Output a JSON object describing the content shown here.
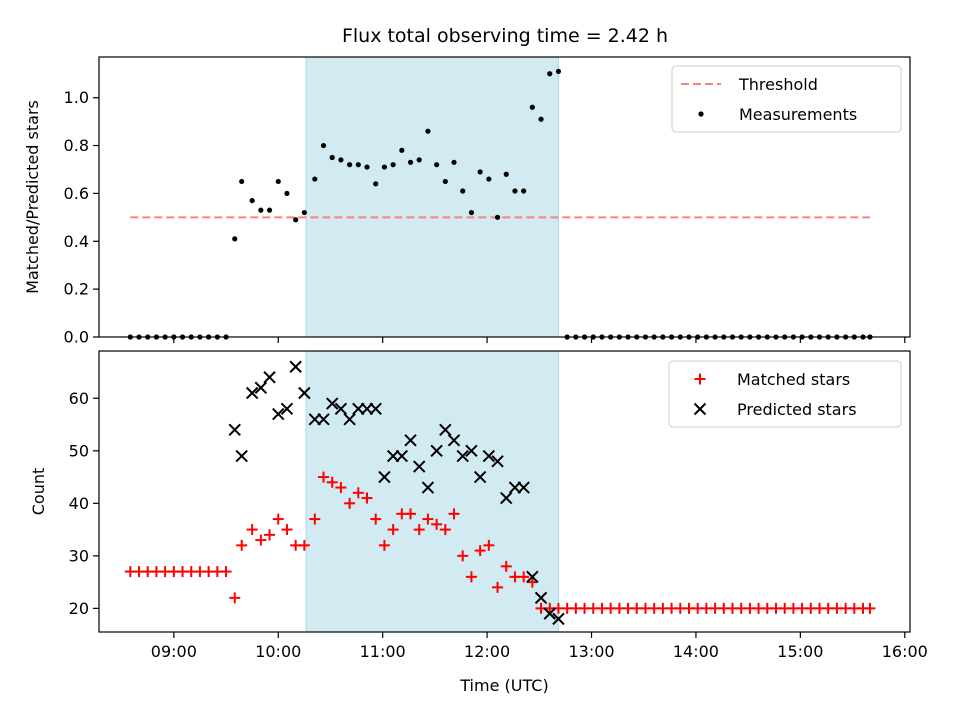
{
  "title": "Flux total observing time = 2.42 h",
  "chart_data": [
    {
      "type": "scatter",
      "ylabel": "Matched/Predicted stars",
      "xlabel": "",
      "ylim": [
        0,
        1.17
      ],
      "y_ticks": [
        "0.0",
        "0.2",
        "0.4",
        "0.6",
        "0.8",
        "1.0"
      ],
      "highlight_span": [
        "10:16",
        "12:41"
      ],
      "threshold": {
        "name": "Threshold",
        "value": 0.5,
        "x_range": [
          "08:35",
          "15:40"
        ]
      },
      "legend": {
        "position": "top-right",
        "entries": [
          "Threshold",
          "Measurements"
        ]
      },
      "series": [
        {
          "name": "Measurements",
          "points": [
            [
              "08:35",
              0
            ],
            [
              "08:40",
              0
            ],
            [
              "08:45",
              0
            ],
            [
              "08:50",
              0
            ],
            [
              "08:55",
              0
            ],
            [
              "09:00",
              0
            ],
            [
              "09:05",
              0
            ],
            [
              "09:10",
              0
            ],
            [
              "09:15",
              0
            ],
            [
              "09:20",
              0
            ],
            [
              "09:25",
              0
            ],
            [
              "09:30",
              0
            ],
            [
              "09:35",
              0.41
            ],
            [
              "09:39",
              0.65
            ],
            [
              "09:45",
              0.57
            ],
            [
              "09:50",
              0.53
            ],
            [
              "09:55",
              0.53
            ],
            [
              "10:00",
              0.65
            ],
            [
              "10:05",
              0.6
            ],
            [
              "10:10",
              0.49
            ],
            [
              "10:15",
              0.52
            ],
            [
              "10:21",
              0.66
            ],
            [
              "10:26",
              0.8
            ],
            [
              "10:31",
              0.75
            ],
            [
              "10:36",
              0.74
            ],
            [
              "10:41",
              0.72
            ],
            [
              "10:46",
              0.72
            ],
            [
              "10:51",
              0.71
            ],
            [
              "10:56",
              0.64
            ],
            [
              "11:01",
              0.71
            ],
            [
              "11:06",
              0.72
            ],
            [
              "11:11",
              0.78
            ],
            [
              "11:16",
              0.73
            ],
            [
              "11:21",
              0.74
            ],
            [
              "11:26",
              0.86
            ],
            [
              "11:31",
              0.72
            ],
            [
              "11:36",
              0.65
            ],
            [
              "11:41",
              0.73
            ],
            [
              "11:46",
              0.61
            ],
            [
              "11:51",
              0.52
            ],
            [
              "11:56",
              0.69
            ],
            [
              "12:01",
              0.66
            ],
            [
              "12:06",
              0.5
            ],
            [
              "12:11",
              0.68
            ],
            [
              "12:16",
              0.61
            ],
            [
              "12:21",
              0.61
            ],
            [
              "12:26",
              0.96
            ],
            [
              "12:31",
              0.91
            ],
            [
              "12:36",
              1.1
            ],
            [
              "12:41",
              1.11
            ],
            [
              "12:46",
              0
            ],
            [
              "12:51",
              0
            ],
            [
              "12:56",
              0
            ],
            [
              "13:01",
              0
            ],
            [
              "13:06",
              0
            ],
            [
              "13:11",
              0
            ],
            [
              "13:16",
              0
            ],
            [
              "13:21",
              0
            ],
            [
              "13:26",
              0
            ],
            [
              "13:31",
              0
            ],
            [
              "13:36",
              0
            ],
            [
              "13:41",
              0
            ],
            [
              "13:46",
              0
            ],
            [
              "13:51",
              0
            ],
            [
              "13:56",
              0
            ],
            [
              "14:01",
              0
            ],
            [
              "14:06",
              0
            ],
            [
              "14:11",
              0
            ],
            [
              "14:16",
              0
            ],
            [
              "14:21",
              0
            ],
            [
              "14:26",
              0
            ],
            [
              "14:31",
              0
            ],
            [
              "14:36",
              0
            ],
            [
              "14:41",
              0
            ],
            [
              "14:46",
              0
            ],
            [
              "14:51",
              0
            ],
            [
              "14:56",
              0
            ],
            [
              "15:01",
              0
            ],
            [
              "15:06",
              0
            ],
            [
              "15:11",
              0
            ],
            [
              "15:16",
              0
            ],
            [
              "15:21",
              0
            ],
            [
              "15:26",
              0
            ],
            [
              "15:31",
              0
            ],
            [
              "15:36",
              0
            ],
            [
              "15:40",
              0
            ]
          ]
        }
      ]
    },
    {
      "type": "scatter",
      "ylabel": "Count",
      "xlabel": "Time (UTC)",
      "ylim": [
        15.5,
        69
      ],
      "x_ticks": [
        "09:00",
        "10:00",
        "11:00",
        "12:00",
        "13:00",
        "14:00",
        "15:00",
        "16:00"
      ],
      "y_ticks": [
        "20",
        "30",
        "40",
        "50",
        "60"
      ],
      "highlight_span": [
        "10:16",
        "12:41"
      ],
      "legend": {
        "position": "top-right",
        "entries": [
          "Matched stars",
          "Predicted stars"
        ]
      },
      "series": [
        {
          "name": "Matched stars",
          "points": [
            [
              "08:35",
              27
            ],
            [
              "08:40",
              27
            ],
            [
              "08:45",
              27
            ],
            [
              "08:50",
              27
            ],
            [
              "08:55",
              27
            ],
            [
              "09:00",
              27
            ],
            [
              "09:05",
              27
            ],
            [
              "09:10",
              27
            ],
            [
              "09:15",
              27
            ],
            [
              "09:20",
              27
            ],
            [
              "09:25",
              27
            ],
            [
              "09:30",
              27
            ],
            [
              "09:35",
              22
            ],
            [
              "09:39",
              32
            ],
            [
              "09:45",
              35
            ],
            [
              "09:50",
              33
            ],
            [
              "09:55",
              34
            ],
            [
              "10:00",
              37
            ],
            [
              "10:05",
              35
            ],
            [
              "10:10",
              32
            ],
            [
              "10:15",
              32
            ],
            [
              "10:21",
              37
            ],
            [
              "10:26",
              45
            ],
            [
              "10:31",
              44
            ],
            [
              "10:36",
              43
            ],
            [
              "10:41",
              40
            ],
            [
              "10:46",
              42
            ],
            [
              "10:51",
              41
            ],
            [
              "10:56",
              37
            ],
            [
              "11:01",
              32
            ],
            [
              "11:06",
              35
            ],
            [
              "11:11",
              38
            ],
            [
              "11:16",
              38
            ],
            [
              "11:21",
              35
            ],
            [
              "11:26",
              37
            ],
            [
              "11:31",
              36
            ],
            [
              "11:36",
              35
            ],
            [
              "11:41",
              38
            ],
            [
              "11:46",
              30
            ],
            [
              "11:51",
              26
            ],
            [
              "11:56",
              31
            ],
            [
              "12:01",
              32
            ],
            [
              "12:06",
              24
            ],
            [
              "12:11",
              28
            ],
            [
              "12:16",
              26
            ],
            [
              "12:21",
              26
            ],
            [
              "12:26",
              25
            ],
            [
              "12:31",
              20
            ],
            [
              "12:36",
              20
            ],
            [
              "12:41",
              20
            ],
            [
              "12:46",
              20
            ],
            [
              "12:51",
              20
            ],
            [
              "12:56",
              20
            ],
            [
              "13:01",
              20
            ],
            [
              "13:06",
              20
            ],
            [
              "13:11",
              20
            ],
            [
              "13:16",
              20
            ],
            [
              "13:21",
              20
            ],
            [
              "13:26",
              20
            ],
            [
              "13:31",
              20
            ],
            [
              "13:36",
              20
            ],
            [
              "13:41",
              20
            ],
            [
              "13:46",
              20
            ],
            [
              "13:51",
              20
            ],
            [
              "13:56",
              20
            ],
            [
              "14:01",
              20
            ],
            [
              "14:06",
              20
            ],
            [
              "14:11",
              20
            ],
            [
              "14:16",
              20
            ],
            [
              "14:21",
              20
            ],
            [
              "14:26",
              20
            ],
            [
              "14:31",
              20
            ],
            [
              "14:36",
              20
            ],
            [
              "14:41",
              20
            ],
            [
              "14:46",
              20
            ],
            [
              "14:51",
              20
            ],
            [
              "14:56",
              20
            ],
            [
              "15:01",
              20
            ],
            [
              "15:06",
              20
            ],
            [
              "15:11",
              20
            ],
            [
              "15:16",
              20
            ],
            [
              "15:21",
              20
            ],
            [
              "15:26",
              20
            ],
            [
              "15:31",
              20
            ],
            [
              "15:36",
              20
            ],
            [
              "15:40",
              20
            ]
          ]
        },
        {
          "name": "Predicted stars",
          "points": [
            [
              "09:35",
              54
            ],
            [
              "09:39",
              49
            ],
            [
              "09:45",
              61
            ],
            [
              "09:50",
              62
            ],
            [
              "09:55",
              64
            ],
            [
              "10:00",
              57
            ],
            [
              "10:05",
              58
            ],
            [
              "10:10",
              66
            ],
            [
              "10:15",
              61
            ],
            [
              "10:21",
              56
            ],
            [
              "10:26",
              56
            ],
            [
              "10:31",
              59
            ],
            [
              "10:36",
              58
            ],
            [
              "10:41",
              56
            ],
            [
              "10:46",
              58
            ],
            [
              "10:51",
              58
            ],
            [
              "10:56",
              58
            ],
            [
              "11:01",
              45
            ],
            [
              "11:06",
              49
            ],
            [
              "11:11",
              49
            ],
            [
              "11:16",
              52
            ],
            [
              "11:21",
              47
            ],
            [
              "11:26",
              43
            ],
            [
              "11:31",
              50
            ],
            [
              "11:36",
              54
            ],
            [
              "11:41",
              52
            ],
            [
              "11:46",
              49
            ],
            [
              "11:51",
              50
            ],
            [
              "11:56",
              45
            ],
            [
              "12:01",
              49
            ],
            [
              "12:06",
              48
            ],
            [
              "12:11",
              41
            ],
            [
              "12:16",
              43
            ],
            [
              "12:21",
              43
            ],
            [
              "12:26",
              26
            ],
            [
              "12:31",
              22
            ],
            [
              "12:36",
              19
            ],
            [
              "12:41",
              18
            ]
          ]
        }
      ]
    }
  ],
  "colors": {
    "span": "#add8e6",
    "threshold": "#ff7f7f",
    "measurements": "#000000",
    "matched": "#ff0000",
    "predicted": "#000000"
  }
}
